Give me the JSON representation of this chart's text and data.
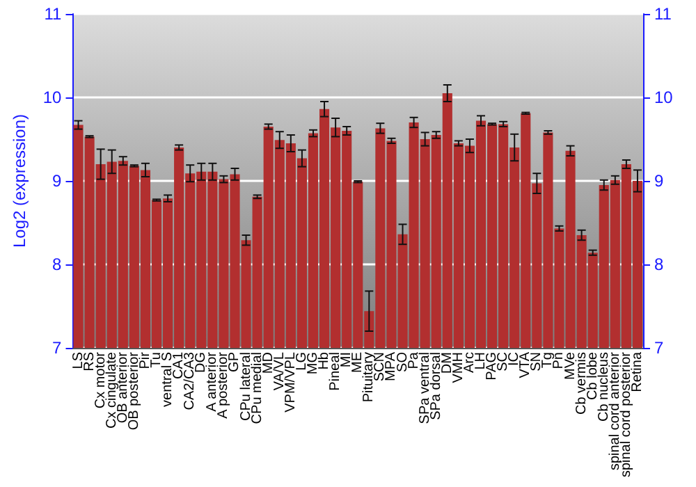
{
  "chart_data": {
    "type": "bar",
    "ylabel": "Log2 (expression)",
    "categories": [
      "LS",
      "RS",
      "Cx motor",
      "Cx cingulate",
      "OB anterior",
      "OB posterior",
      "Pir",
      "Tu",
      "ventral S",
      "CA1",
      "CA2/CA3",
      "DG",
      "A anterior",
      "A posterior",
      "GP",
      "CPu lateral",
      "CPu medial",
      "MD",
      "VA/VL",
      "VPM/VPL",
      "LG",
      "MG",
      "Hb",
      "Pineal",
      "MI",
      "ME",
      "Pituitary",
      "SCN",
      "MPA",
      "SO",
      "Pa",
      "SPa ventral",
      "SPa dorsal",
      "DM",
      "VMH",
      "Arc",
      "LH",
      "PAG",
      "SC",
      "IC",
      "VTA",
      "SN",
      "Tg",
      "Pn",
      "MVe",
      "Cb vermis",
      "Cb lobe",
      "Cb nucleus",
      "spinal cord anterior",
      "spinal cord posterior",
      "Retina"
    ],
    "series": [
      {
        "color": "#b22f2f",
        "values": [
          9.67,
          9.53,
          9.2,
          9.23,
          9.24,
          9.18,
          9.13,
          8.77,
          8.79,
          9.4,
          9.09,
          9.11,
          9.11,
          9.02,
          9.08,
          8.29,
          8.81,
          9.65,
          9.49,
          9.45,
          9.27,
          9.57,
          9.86,
          9.64,
          9.6,
          8.99,
          7.44,
          9.63,
          9.48,
          8.36,
          9.7,
          9.5,
          9.55,
          10.05,
          9.45,
          9.42,
          9.72,
          9.68,
          9.68,
          9.4,
          9.81,
          8.97,
          9.58,
          8.43,
          9.36,
          8.35,
          8.14,
          8.95,
          9.01,
          9.2,
          9.0
        ],
        "errors": [
          0.05,
          0.01,
          0.18,
          0.14,
          0.05,
          0.01,
          0.08,
          0.01,
          0.04,
          0.03,
          0.1,
          0.1,
          0.1,
          0.04,
          0.07,
          0.06,
          0.02,
          0.03,
          0.1,
          0.1,
          0.1,
          0.04,
          0.09,
          0.11,
          0.05,
          0.01,
          0.24,
          0.06,
          0.03,
          0.12,
          0.06,
          0.08,
          0.04,
          0.1,
          0.03,
          0.08,
          0.06,
          0.01,
          0.03,
          0.16,
          0.01,
          0.12,
          0.02,
          0.03,
          0.06,
          0.06,
          0.03,
          0.06,
          0.05,
          0.05,
          0.13
        ]
      }
    ],
    "ylim": [
      7,
      11
    ],
    "yticks": [
      7,
      8,
      9,
      10,
      11
    ],
    "y2lim": [
      7,
      11
    ],
    "y2ticks": [
      7,
      8,
      9,
      10,
      11
    ],
    "grid": "y"
  }
}
